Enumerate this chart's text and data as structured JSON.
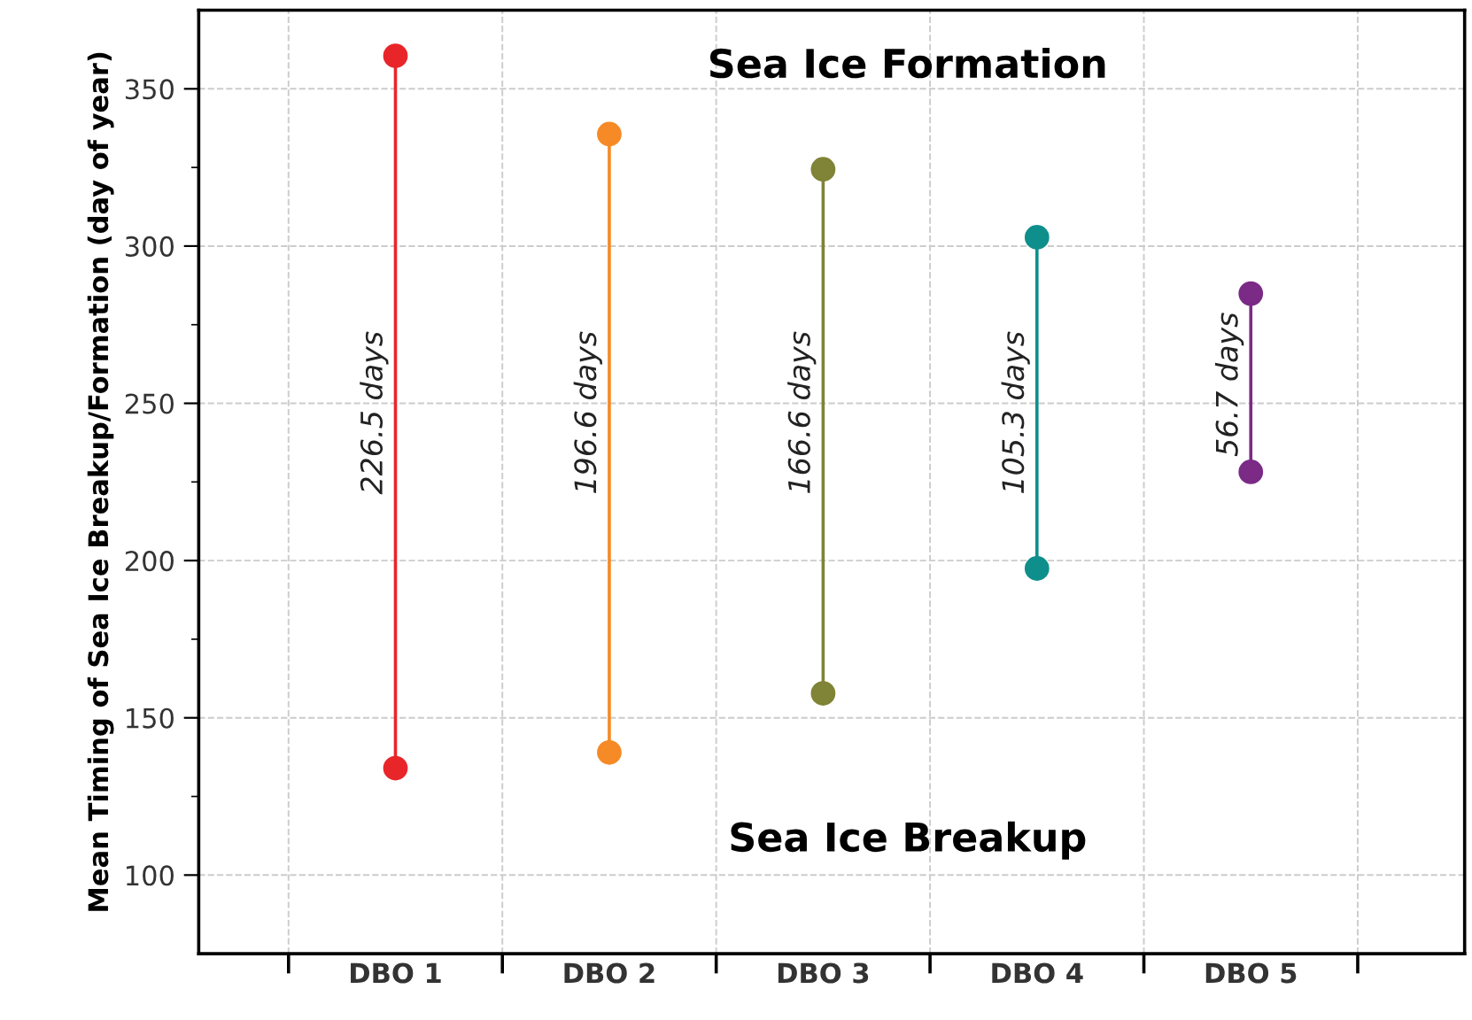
{
  "chart_data": {
    "type": "line",
    "ylabel": "Mean Timing of Sea Ice Breakup/Formation (day of year)",
    "categories": [
      "DBO 1",
      "DBO 2",
      "DBO 3",
      "DBO 4",
      "DBO 5"
    ],
    "series": [
      {
        "color": "#e8262a",
        "x": [
          "DBO 1",
          "DBO 1"
        ],
        "values": [
          134,
          360.5
        ]
      },
      {
        "color": "#f58a26",
        "x": [
          "DBO 2",
          "DBO 2"
        ],
        "values": [
          139,
          335.6
        ]
      },
      {
        "color": "#7f8436",
        "x": [
          "DBO 3",
          "DBO 3"
        ],
        "values": [
          157.8,
          324.4
        ]
      },
      {
        "color": "#0f8f8c",
        "x": [
          "DBO 4",
          "DBO 4"
        ],
        "values": [
          197.5,
          302.8
        ]
      },
      {
        "color": "#7b2a86",
        "x": [
          "DBO 5",
          "DBO 5"
        ],
        "values": [
          228.2,
          284.9
        ]
      }
    ],
    "marker": "circle",
    "line_style": "solid",
    "ylim": [
      75,
      375
    ],
    "yticks": [
      100,
      {
        "value": 125,
        "label": null
      },
      150,
      {
        "value": 175,
        "label": null
      },
      200,
      {
        "value": 225,
        "label": null
      },
      250,
      {
        "value": 275,
        "label": null
      },
      300,
      {
        "value": 325,
        "label": null
      },
      350
    ],
    "grid": true,
    "annotations": [
      "Sea Ice Formation",
      "Sea Ice Breakup",
      {
        "text": "226.5 days",
        "x": "DBO 1",
        "y": 247
      },
      {
        "text": "196.6 days",
        "x": "DBO 2",
        "y": 247
      },
      {
        "text": "166.6 days",
        "x": "DBO 3",
        "y": 247
      },
      {
        "text": "105.3 days",
        "x": "DBO 4",
        "y": 247
      },
      {
        "text": "56.7 days",
        "x": "DBO 5",
        "y": 256
      }
    ]
  }
}
